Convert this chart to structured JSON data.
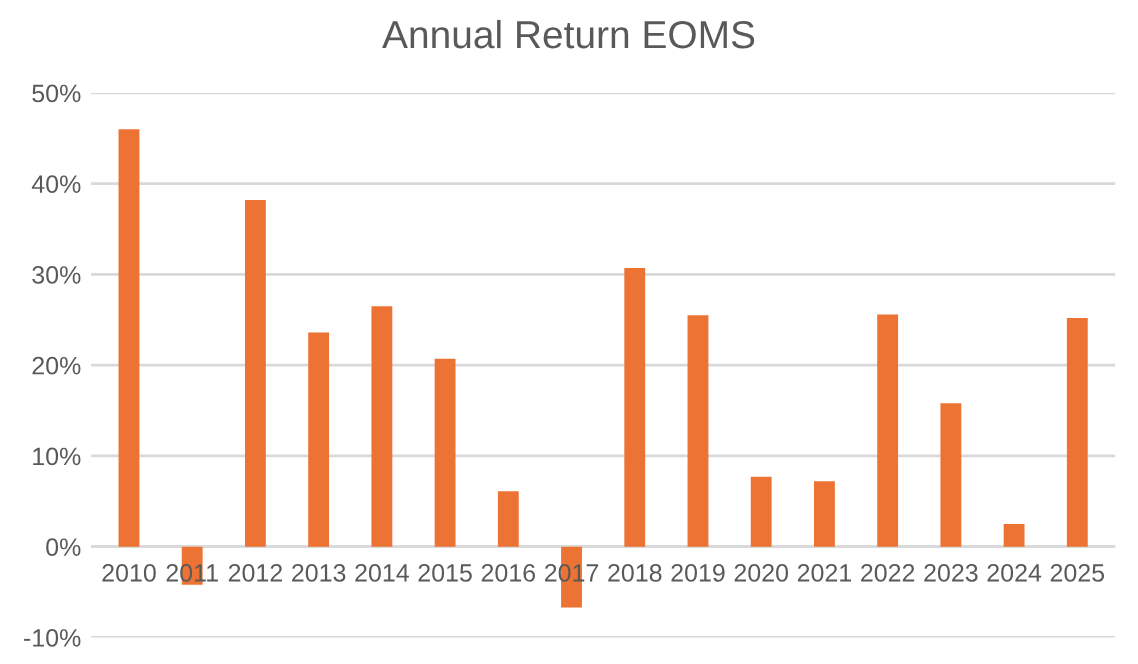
{
  "chart_data": {
    "type": "bar",
    "title": "Annual Return EOMS",
    "categories": [
      "2010",
      "2011",
      "2012",
      "2013",
      "2014",
      "2015",
      "2016",
      "2017",
      "2018",
      "2019",
      "2020",
      "2021",
      "2022",
      "2023",
      "2024",
      "2025"
    ],
    "values": [
      46.0,
      -4.2,
      38.2,
      23.6,
      26.5,
      20.7,
      6.1,
      -6.7,
      30.7,
      25.5,
      7.7,
      7.2,
      25.6,
      15.8,
      2.5,
      25.2
    ],
    "color": "#ed7334",
    "ylim": [
      -10,
      50
    ],
    "yticks": [
      {
        "value": -10,
        "label": "-10%"
      },
      {
        "value": 0,
        "label": "0%"
      },
      {
        "value": 10,
        "label": "10%"
      },
      {
        "value": 20,
        "label": "20%"
      },
      {
        "value": 30,
        "label": "30%"
      },
      {
        "value": 40,
        "label": "40%"
      },
      {
        "value": 50,
        "label": "50%"
      }
    ],
    "grid": "y",
    "legend": false
  }
}
